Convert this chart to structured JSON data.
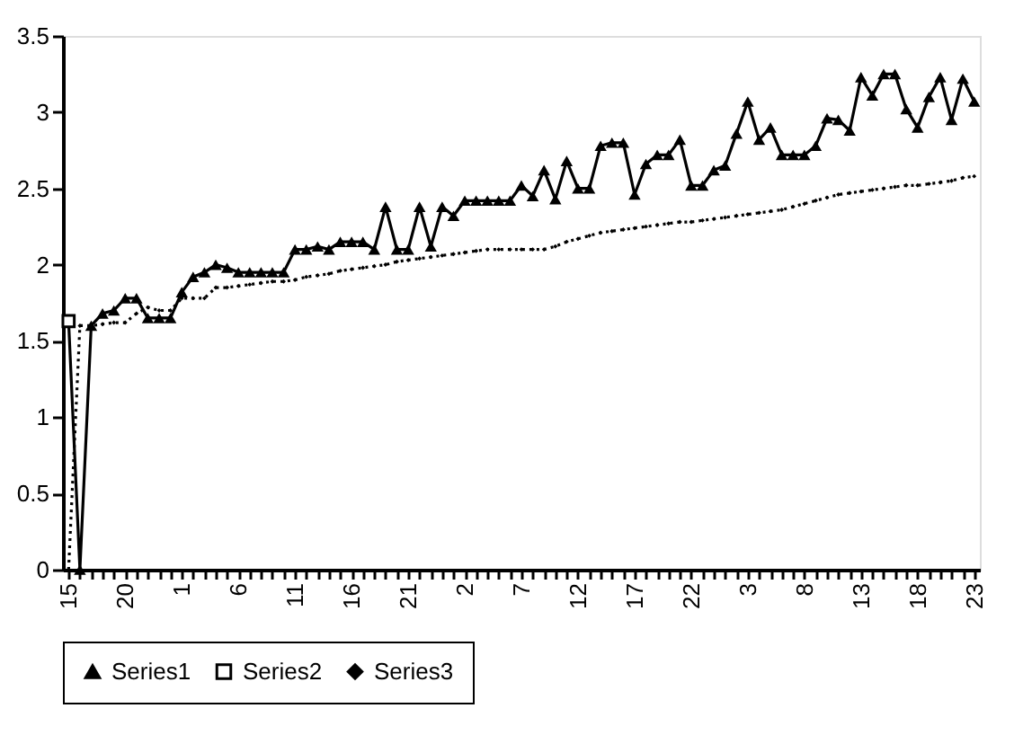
{
  "chart_data": {
    "type": "line",
    "categories": [
      "15",
      null,
      null,
      null,
      null,
      "20",
      null,
      null,
      null,
      null,
      "1",
      null,
      null,
      null,
      null,
      "6",
      null,
      null,
      null,
      null,
      "11",
      null,
      null,
      null,
      null,
      "16",
      null,
      null,
      null,
      null,
      "21",
      null,
      null,
      null,
      null,
      "2",
      null,
      null,
      null,
      null,
      "7",
      null,
      null,
      null,
      null,
      "12",
      null,
      null,
      null,
      null,
      "17",
      null,
      null,
      null,
      null,
      "22",
      null,
      null,
      null,
      null,
      "3",
      null,
      null,
      null,
      null,
      "8",
      null,
      null,
      null,
      null,
      "13",
      null,
      null,
      null,
      null,
      "18",
      null,
      null,
      null,
      null,
      "23"
    ],
    "series": [
      {
        "name": "Series1",
        "color": "#000000",
        "marker": "triangle",
        "line_style": "solid",
        "values": [
          1.63,
          0,
          1.6,
          1.68,
          1.7,
          1.78,
          1.78,
          1.65,
          1.65,
          1.65,
          1.82,
          1.92,
          1.95,
          2.0,
          1.98,
          1.95,
          1.95,
          1.95,
          1.95,
          1.95,
          2.1,
          2.1,
          2.12,
          2.1,
          2.15,
          2.15,
          2.15,
          2.1,
          2.38,
          2.1,
          2.1,
          2.38,
          2.12,
          2.38,
          2.32,
          2.42,
          2.42,
          2.42,
          2.42,
          2.42,
          2.52,
          2.45,
          2.62,
          2.43,
          2.68,
          2.5,
          2.5,
          2.78,
          2.8,
          2.8,
          2.46,
          2.66,
          2.72,
          2.72,
          2.82,
          2.52,
          2.52,
          2.62,
          2.65,
          2.86,
          3.07,
          2.82,
          2.9,
          2.72,
          2.72,
          2.72,
          2.78,
          2.96,
          2.95,
          2.88,
          3.23,
          3.11,
          3.25,
          3.25,
          3.02,
          2.9,
          3.1,
          3.23,
          2.95,
          3.22,
          3.07
        ]
      },
      {
        "name": "Series2",
        "color": "#000000",
        "marker": "square",
        "line_style": "solid",
        "values": [
          1.63,
          null,
          null,
          null,
          null,
          null,
          null,
          null,
          null,
          null,
          null,
          null,
          null,
          null,
          null,
          null,
          null,
          null,
          null,
          null,
          null,
          null,
          null,
          null,
          null,
          null,
          null,
          null,
          null,
          null,
          null,
          null,
          null,
          null,
          null,
          null,
          null,
          null,
          null,
          null,
          null,
          null,
          null,
          null,
          null,
          null,
          null,
          null,
          null,
          null,
          null,
          null,
          null,
          null,
          null,
          null,
          null,
          null,
          null,
          null,
          null,
          null,
          null,
          null,
          null,
          null,
          null,
          null,
          null,
          null,
          null,
          null,
          null,
          null,
          null,
          null,
          null,
          null,
          null,
          null,
          null
        ]
      },
      {
        "name": "Series3",
        "color": "#000000",
        "marker": "diamond",
        "line_style": "dotted",
        "values": [
          0,
          1.6,
          1.6,
          1.61,
          1.62,
          1.62,
          1.68,
          1.72,
          1.7,
          1.7,
          1.78,
          1.78,
          1.78,
          1.85,
          1.85,
          1.86,
          1.87,
          1.88,
          1.89,
          1.89,
          1.9,
          1.92,
          1.93,
          1.94,
          1.96,
          1.97,
          1.98,
          1.99,
          2.0,
          2.02,
          2.03,
          2.04,
          2.05,
          2.06,
          2.07,
          2.08,
          2.09,
          2.1,
          2.1,
          2.1,
          2.1,
          2.1,
          2.1,
          2.12,
          2.15,
          2.17,
          2.19,
          2.21,
          2.22,
          2.23,
          2.24,
          2.25,
          2.26,
          2.27,
          2.28,
          2.28,
          2.29,
          2.3,
          2.31,
          2.32,
          2.33,
          2.34,
          2.35,
          2.36,
          2.38,
          2.4,
          2.42,
          2.44,
          2.46,
          2.47,
          2.48,
          2.49,
          2.5,
          2.51,
          2.52,
          2.52,
          2.53,
          2.54,
          2.55,
          2.57,
          2.58
        ]
      }
    ],
    "ylim": [
      0,
      3.5
    ],
    "yticks": [
      0,
      0.5,
      1,
      1.5,
      2,
      2.5,
      3,
      3.5
    ],
    "grid": false,
    "legend": "bottom"
  }
}
